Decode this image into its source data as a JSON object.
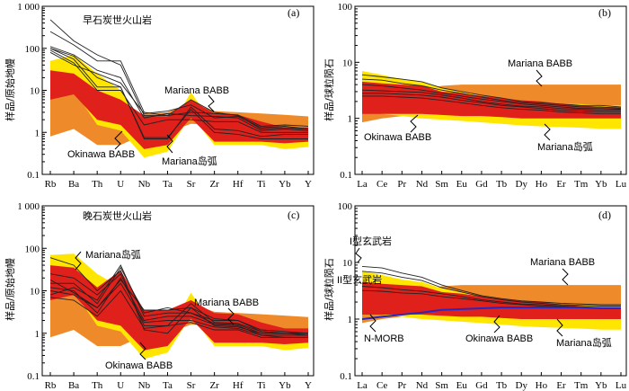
{
  "chart_data": [
    {
      "type": "line",
      "panel_label": "(a)",
      "title": "早石炭世火山岩",
      "ylabel": "样品/原始地幔",
      "yscale": "log",
      "ylim": [
        0.1,
        1000
      ],
      "y_ticks": [
        "0.1",
        "1",
        "10",
        "100",
        "1 000"
      ],
      "categories": [
        "Rb",
        "Ba",
        "Th",
        "U",
        "Nb",
        "Ta",
        "Sr",
        "Zr",
        "Hf",
        "Ti",
        "Yb",
        "Y"
      ],
      "colors": {
        "Mariana BABB": "#ef8a2a",
        "Mariana岛弧": "#ffe600",
        "Okinawa BABB": "#e0201b"
      },
      "fields": [
        {
          "name": "Mariana BABB",
          "upper": [
            18,
            14,
            2.2,
            1.5,
            2.8,
            3.0,
            5,
            3.2,
            3.0,
            2.8,
            2.6,
            2.4
          ],
          "lower": [
            0.8,
            1.2,
            0.5,
            0.5,
            0.9,
            1.0,
            1.6,
            1.5,
            1.4,
            1.2,
            1.2,
            1.2
          ]
        },
        {
          "name": "Mariana岛弧",
          "upper": [
            50,
            70,
            25,
            10,
            1.2,
            1.0,
            9,
            1.4,
            1.2,
            1.1,
            1.0,
            1.0
          ],
          "lower": [
            10,
            10,
            1.5,
            1.1,
            0.25,
            0.35,
            2.5,
            0.5,
            0.5,
            0.5,
            0.4,
            0.45
          ]
        },
        {
          "name": "Okinawa BABB",
          "upper": [
            30,
            25,
            10,
            6,
            2.5,
            2.4,
            6,
            2.8,
            2.6,
            1.8,
            1.3,
            1.3
          ],
          "lower": [
            6,
            8,
            2,
            1.5,
            0.4,
            0.5,
            2.2,
            0.6,
            0.6,
            0.6,
            0.55,
            0.6
          ]
        }
      ],
      "series": [
        {
          "values": [
            480,
            150,
            70,
            40,
            2.5,
            2.5,
            3,
            2.8,
            2.6,
            1.4,
            1.5,
            1.4
          ]
        },
        {
          "values": [
            250,
            120,
            50,
            50,
            3,
            2.5,
            6,
            3,
            2.5,
            1.2,
            1.3,
            1.2
          ]
        },
        {
          "values": [
            110,
            70,
            30,
            20,
            2.2,
            2.8,
            2.5,
            2.4,
            2.2,
            1.1,
            1.2,
            1.1
          ]
        },
        {
          "values": [
            100,
            65,
            20,
            12,
            0.7,
            0.7,
            4,
            1.2,
            1.1,
            0.8,
            0.9,
            0.9
          ]
        },
        {
          "values": [
            100,
            55,
            12,
            12,
            0.75,
            0.75,
            3.5,
            1.0,
            0.9,
            0.7,
            0.7,
            0.7
          ]
        },
        {
          "values": [
            90,
            45,
            10,
            10,
            1.5,
            2.0,
            2.0,
            1.8,
            1.8,
            1.0,
            1.0,
            1.0
          ]
        },
        {
          "values": [
            80,
            40,
            25,
            15,
            2.8,
            3.2,
            4.5,
            2.2,
            2.4,
            1.3,
            1.4,
            1.2
          ]
        }
      ],
      "annotations": [
        "Mariana BABB",
        "Okinawa BABB",
        "Mariana岛弧"
      ]
    },
    {
      "type": "line",
      "panel_label": "(b)",
      "title": "",
      "ylabel": "样品/球粒陨石",
      "yscale": "log",
      "ylim": [
        0.1,
        100
      ],
      "y_ticks": [
        "0.1",
        "1",
        "10",
        "100"
      ],
      "categories": [
        "La",
        "Ce",
        "Pr",
        "Nd",
        "Sm",
        "Eu",
        "Gd",
        "Tb",
        "Dy",
        "Ho",
        "Er",
        "Tm",
        "Yb",
        "Lu"
      ],
      "colors": {
        "Mariana BABB": "#ef8a2a",
        "Mariana岛弧": "#ffe600",
        "Okinawa BABB": "#e0201b"
      },
      "fields": [
        {
          "name": "Mariana BABB",
          "upper": [
            2.2,
            2.5,
            2.8,
            3.2,
            3.8,
            4.0,
            4.0,
            4.0,
            4.0,
            4.0,
            4.0,
            4.0,
            4.0,
            4.0
          ],
          "lower": [
            0.85,
            1.0,
            1.1,
            1.2,
            1.4,
            1.45,
            1.45,
            1.45,
            1.45,
            1.4,
            1.4,
            1.4,
            1.4,
            1.4
          ]
        },
        {
          "name": "Mariana岛弧",
          "upper": [
            7,
            6,
            5,
            4.5,
            3.5,
            3.0,
            2.5,
            2.2,
            2.0,
            1.9,
            1.8,
            1.8,
            1.7,
            1.7
          ],
          "lower": [
            1.3,
            1.2,
            1.1,
            1.0,
            0.95,
            0.9,
            0.85,
            0.8,
            0.75,
            0.72,
            0.7,
            0.68,
            0.65,
            0.65
          ]
        },
        {
          "name": "Okinawa BABB",
          "upper": [
            4.5,
            4.2,
            4.0,
            3.8,
            3.0,
            2.8,
            2.5,
            2.3,
            2.1,
            2.0,
            1.8,
            1.7,
            1.6,
            1.6
          ],
          "lower": [
            1.2,
            1.2,
            1.2,
            1.2,
            1.15,
            1.1,
            1.1,
            1.05,
            1.0,
            1.0,
            1.0,
            1.0,
            1.0,
            1.0
          ]
        }
      ],
      "series": [
        {
          "values": [
            6.0,
            5.5,
            5.0,
            4.5,
            3.5,
            3.0,
            2.6,
            2.3,
            2.0,
            1.9,
            1.8,
            1.7,
            1.7,
            1.6
          ]
        },
        {
          "values": [
            5.0,
            4.8,
            4.2,
            3.8,
            3.2,
            2.8,
            2.4,
            2.1,
            1.9,
            1.8,
            1.7,
            1.6,
            1.6,
            1.5
          ]
        },
        {
          "values": [
            4.0,
            3.8,
            3.5,
            3.2,
            2.8,
            2.5,
            2.2,
            2.0,
            1.8,
            1.7,
            1.6,
            1.5,
            1.5,
            1.45
          ]
        },
        {
          "values": [
            3.2,
            3.1,
            3.0,
            2.9,
            2.6,
            2.3,
            2.0,
            1.8,
            1.65,
            1.6,
            1.5,
            1.45,
            1.4,
            1.4
          ]
        },
        {
          "values": [
            2.8,
            2.8,
            2.7,
            2.6,
            2.4,
            2.1,
            1.9,
            1.7,
            1.6,
            1.5,
            1.4,
            1.35,
            1.3,
            1.3
          ]
        },
        {
          "values": [
            2.5,
            2.5,
            2.4,
            2.3,
            2.1,
            1.9,
            1.7,
            1.55,
            1.45,
            1.4,
            1.3,
            1.25,
            1.2,
            1.2
          ]
        }
      ],
      "annotations": [
        "Mariana BABB",
        "Okinawa BABB",
        "Mariana岛弧"
      ]
    },
    {
      "type": "line",
      "panel_label": "(c)",
      "title": "晚石炭世火山岩",
      "ylabel": "样品/原始地幔",
      "yscale": "log",
      "ylim": [
        0.1,
        1000
      ],
      "y_ticks": [
        "0.1",
        "1",
        "10",
        "100",
        "1 000"
      ],
      "categories": [
        "Rb",
        "Ba",
        "Th",
        "U",
        "Nb",
        "Ta",
        "Sr",
        "Zr",
        "Hf",
        "Ti",
        "Yb",
        "Y"
      ],
      "colors": {
        "Mariana BABB": "#ef8a2a",
        "Mariana岛弧": "#ffe600",
        "Okinawa BABB": "#e0201b"
      },
      "fields": [
        {
          "name": "Mariana BABB",
          "upper": [
            18,
            14,
            2.2,
            1.5,
            2.8,
            3.0,
            5,
            3.2,
            3.0,
            2.8,
            2.6,
            2.4
          ],
          "lower": [
            0.8,
            1.2,
            0.5,
            0.5,
            0.9,
            1.0,
            1.6,
            1.5,
            1.4,
            1.2,
            1.2,
            1.2
          ]
        },
        {
          "name": "Mariana岛弧",
          "upper": [
            70,
            75,
            25,
            12,
            1.2,
            1.0,
            9,
            1.4,
            1.2,
            1.1,
            1.0,
            1.0
          ],
          "lower": [
            10,
            10,
            1.5,
            1.1,
            0.25,
            0.35,
            2.5,
            0.5,
            0.5,
            0.5,
            0.4,
            0.45
          ]
        },
        {
          "name": "Okinawa BABB",
          "upper": [
            40,
            35,
            12,
            30,
            3.5,
            3.5,
            6,
            3.0,
            2.8,
            1.8,
            1.3,
            1.3
          ],
          "lower": [
            6,
            8,
            2,
            1.5,
            0.4,
            0.5,
            2.2,
            0.6,
            0.6,
            0.6,
            0.55,
            0.6
          ]
        }
      ],
      "series": [
        {
          "values": [
            60,
            40,
            10,
            30,
            1.2,
            1.0,
            4,
            1.5,
            1.4,
            1.0,
            1.0,
            1.0
          ]
        },
        {
          "values": [
            25,
            20,
            8,
            25,
            1.5,
            1.5,
            5,
            1.8,
            1.7,
            1.1,
            1.0,
            1.0
          ]
        },
        {
          "values": [
            15,
            15,
            5,
            35,
            3,
            4,
            3,
            2,
            2,
            1.2,
            1.1,
            1.0
          ]
        },
        {
          "values": [
            12,
            10,
            3,
            20,
            2,
            2.5,
            2.5,
            1.6,
            1.5,
            0.9,
            0.9,
            0.9
          ]
        },
        {
          "values": [
            10,
            8,
            4,
            15,
            1.8,
            2,
            2,
            1.4,
            1.3,
            0.9,
            0.8,
            0.8
          ]
        },
        {
          "values": [
            8,
            12,
            6,
            40,
            2.5,
            3,
            3,
            1.7,
            1.6,
            1.0,
            1.0,
            0.9
          ]
        },
        {
          "values": [
            7,
            6,
            2.5,
            10,
            1.3,
            1.5,
            1.8,
            1.2,
            1.2,
            0.8,
            0.8,
            0.8
          ]
        },
        {
          "values": [
            18,
            9,
            4,
            18,
            3.5,
            3.5,
            4,
            2.2,
            2.0,
            1.1,
            1.0,
            1.0
          ]
        }
      ],
      "annotations": [
        "Mariana岛弧",
        "Mariana BABB",
        "Okinawa BABB"
      ]
    },
    {
      "type": "line",
      "panel_label": "(d)",
      "title": "",
      "ylabel": "样品/球粒陨石",
      "yscale": "log",
      "ylim": [
        0.1,
        100
      ],
      "y_ticks": [
        "0.1",
        "1",
        "10",
        "100"
      ],
      "categories": [
        "La",
        "Ce",
        "Pr",
        "Nd",
        "Sm",
        "Eu",
        "Gd",
        "Tb",
        "Dy",
        "Ho",
        "Er",
        "Tm",
        "Yb",
        "Lu"
      ],
      "colors": {
        "Mariana BABB": "#ef8a2a",
        "Mariana岛弧": "#ffe600",
        "Okinawa BABB": "#e0201b",
        "N-MORB": "#2727c4"
      },
      "fields": [
        {
          "name": "Mariana BABB",
          "upper": [
            2.2,
            2.5,
            2.8,
            3.2,
            3.8,
            4.0,
            4.0,
            4.0,
            4.0,
            4.0,
            4.0,
            4.0,
            4.0,
            4.0
          ],
          "lower": [
            0.85,
            1.0,
            1.1,
            1.2,
            1.4,
            1.45,
            1.45,
            1.45,
            1.45,
            1.4,
            1.4,
            1.4,
            1.4,
            1.4
          ]
        },
        {
          "name": "Mariana岛弧",
          "upper": [
            7,
            6,
            5,
            4.5,
            3.5,
            3.0,
            2.5,
            2.2,
            2.0,
            1.9,
            1.8,
            1.8,
            1.7,
            1.7
          ],
          "lower": [
            1.3,
            1.2,
            1.1,
            1.0,
            0.95,
            0.9,
            0.85,
            0.8,
            0.75,
            0.72,
            0.7,
            0.68,
            0.65,
            0.65
          ]
        },
        {
          "name": "Okinawa BABB",
          "upper": [
            4.5,
            4.2,
            4.0,
            3.8,
            3.0,
            2.8,
            2.5,
            2.3,
            2.1,
            2.0,
            1.8,
            1.7,
            1.6,
            1.6
          ],
          "lower": [
            1.2,
            1.2,
            1.2,
            1.2,
            1.15,
            1.1,
            1.1,
            1.05,
            1.0,
            1.0,
            1.0,
            1.0,
            1.0,
            1.0
          ]
        }
      ],
      "series": [
        {
          "name": "I型玄武岩",
          "values": [
            8.5,
            8.0,
            6.5,
            5.5,
            4.0,
            3.2,
            2.6,
            2.3,
            2.1,
            2.0,
            1.9,
            1.85,
            1.8,
            1.8
          ]
        },
        {
          "values": [
            7.0,
            6.5,
            5.5,
            4.8,
            3.6,
            3.0,
            2.5,
            2.2,
            2.0,
            1.9,
            1.8,
            1.75,
            1.7,
            1.7
          ]
        },
        {
          "name": "II型玄武岩",
          "values": [
            3.8,
            3.6,
            3.3,
            3.1,
            2.8,
            2.5,
            2.2,
            2.0,
            1.85,
            1.8,
            1.7,
            1.65,
            1.6,
            1.6
          ]
        },
        {
          "values": [
            3.2,
            3.1,
            2.9,
            2.8,
            2.5,
            2.3,
            2.1,
            1.9,
            1.8,
            1.7,
            1.65,
            1.6,
            1.55,
            1.55
          ]
        },
        {
          "name": "N-MORB",
          "values": [
            1.0,
            1.1,
            1.2,
            1.3,
            1.45,
            1.5,
            1.55,
            1.6,
            1.6,
            1.6,
            1.6,
            1.6,
            1.55,
            1.55
          ]
        }
      ],
      "annotations": [
        "I型玄武岩",
        "II型玄武岩",
        "N-MORB",
        "Mariana BABB",
        "Okinawa BABB",
        "Mariana岛弧"
      ]
    }
  ]
}
